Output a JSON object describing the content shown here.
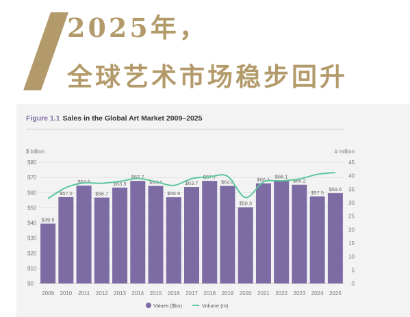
{
  "headline": {
    "line1": "2025年，",
    "line2": "全球艺术市场稳步回升"
  },
  "figure": {
    "number": "Figure 1.1",
    "title": "Sales in the Global Art Market 2009–2025"
  },
  "colors": {
    "gold": "#b39a6a",
    "bar": "#7d6ba4",
    "line": "#5cc79c",
    "panel": "#f4f3f3"
  },
  "chart_data": {
    "type": "bar",
    "categories": [
      "2009",
      "2010",
      "2011",
      "2012",
      "2013",
      "2014",
      "2015",
      "2016",
      "2017",
      "2018",
      "2019",
      "2020",
      "2021",
      "2022",
      "2023",
      "2024",
      "2025"
    ],
    "series": [
      {
        "name": "Values ($bn)",
        "type": "bar",
        "axis": "left",
        "values": [
          39.5,
          57.0,
          64.6,
          56.7,
          63.3,
          67.7,
          64.4,
          56.9,
          63.7,
          67.7,
          64.4,
          50.3,
          66.1,
          68.1,
          65.2,
          57.5,
          59.6
        ],
        "labels": [
          "$39.5",
          "$57.0",
          "$64.6",
          "$56.7",
          "$63.3",
          "$67.7",
          "$64.4",
          "$56.9",
          "$63.7",
          "$67.7",
          "$64.4",
          "$50.3",
          "$66.1",
          "$68.1",
          "$65.2",
          "$57.5",
          "$59.6"
        ]
      },
      {
        "name": "Volume (m)",
        "type": "line",
        "axis": "right",
        "values": [
          31.5,
          35.6,
          37.3,
          37.2,
          37.9,
          39.0,
          37.8,
          36.4,
          38.9,
          39.6,
          39.8,
          31.9,
          37.7,
          38.1,
          38.8,
          40.5,
          41.2
        ]
      }
    ],
    "y_left": {
      "label": "$ billion",
      "ylim": [
        0,
        80
      ],
      "ticks": [
        "$0",
        "$10",
        "$20",
        "$30",
        "$40",
        "$50",
        "$60",
        "$70",
        "$80"
      ]
    },
    "y_right": {
      "label": "# million",
      "ylim": [
        0,
        45
      ],
      "ticks": [
        "0",
        "5",
        "10",
        "15",
        "20",
        "25",
        "30",
        "35",
        "40",
        "45"
      ]
    },
    "legend": {
      "placement": "bottom-center",
      "items": [
        "Values ($bn)",
        "Volume (m)"
      ]
    },
    "grid": true
  }
}
